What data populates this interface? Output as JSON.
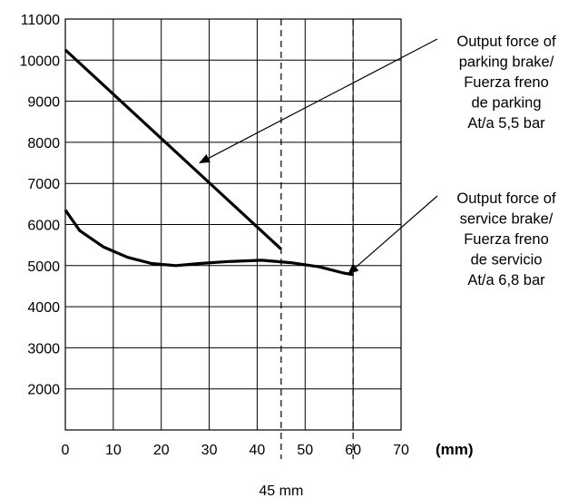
{
  "chart_data": {
    "type": "line",
    "title": "",
    "xlabel": "(mm)",
    "ylabel": "",
    "xlim": [
      0,
      70
    ],
    "ylim": [
      1000,
      11000
    ],
    "xticks": [
      "0",
      "10",
      "20",
      "30",
      "40",
      "50",
      "60",
      "70"
    ],
    "yticks": [
      "2000",
      "3000",
      "4000",
      "5000",
      "6000",
      "7000",
      "8000",
      "9000",
      "10000",
      "11000"
    ],
    "grid": true,
    "series": [
      {
        "id": "parking",
        "points": [
          [
            0,
            10250
          ],
          [
            45,
            5400
          ]
        ]
      },
      {
        "id": "service",
        "points": [
          [
            0,
            6350
          ],
          [
            3,
            5850
          ],
          [
            8,
            5450
          ],
          [
            13,
            5200
          ],
          [
            18,
            5050
          ],
          [
            23,
            5000
          ],
          [
            28,
            5050
          ],
          [
            34,
            5100
          ],
          [
            41,
            5130
          ],
          [
            47,
            5070
          ],
          [
            53,
            4970
          ],
          [
            58,
            4820
          ],
          [
            60,
            4780
          ]
        ]
      }
    ],
    "markers": [
      {
        "x": 45,
        "style": "dashed",
        "label": "45 mm"
      },
      {
        "x": 60,
        "style": "dashed"
      }
    ],
    "annotations": [
      {
        "id": "parking",
        "lines": [
          "Output force of",
          "parking brake/",
          "Fuerza freno",
          "de parking",
          "At/a 5,5 bar"
        ],
        "target": [
          28,
          7500
        ]
      },
      {
        "id": "service",
        "lines": [
          "Output force of",
          "service brake/",
          "Fuerza freno",
          "de servicio",
          "At/a 6,8 bar"
        ],
        "target": [
          59,
          4800
        ]
      }
    ]
  }
}
